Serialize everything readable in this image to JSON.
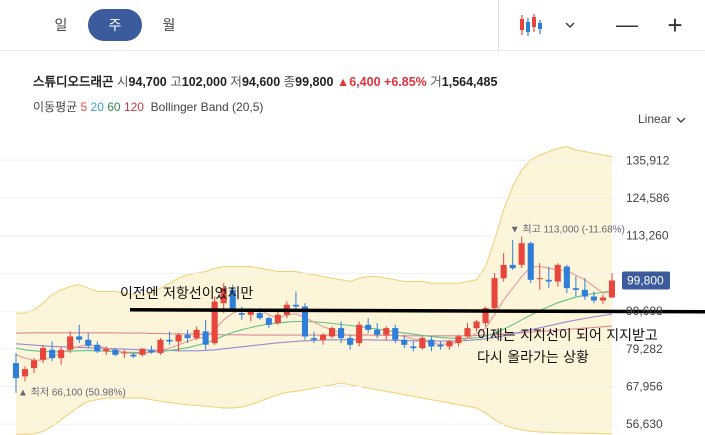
{
  "tabs": [
    {
      "label": "일",
      "active": false
    },
    {
      "label": "주",
      "active": true
    },
    {
      "label": "월",
      "active": false
    }
  ],
  "toolbar": {
    "chart_type_icon": "candlestick-icon",
    "dropdown_icon": "chevron-down-icon",
    "zoom_out": "—",
    "zoom_in": "+"
  },
  "quote": {
    "name": "스튜디오드래곤",
    "open_label": "시",
    "open": "94,700",
    "high_label": "고",
    "high": "102,000",
    "low_label": "저",
    "low": "94,600",
    "close_label": "종",
    "close": "99,800",
    "change": "▲6,400",
    "change_pct": "+6.85%",
    "volume_label": "거",
    "volume": "1,564,485"
  },
  "indicators": {
    "ma_label": "이동평균",
    "ma": [
      {
        "period": "5",
        "color": "#e24a4a"
      },
      {
        "period": "20",
        "color": "#3aa6c8"
      },
      {
        "period": "60",
        "color": "#3a8a52"
      },
      {
        "period": "120",
        "color": "#c0394a"
      }
    ],
    "bollinger": "Bollinger Band (20,5)"
  },
  "scale_label": "Linear",
  "colors": {
    "up": "#e8453c",
    "down": "#2f7fd9",
    "band": "#fdf5d9",
    "band_line": "#f0d070",
    "price_tag": "#3b5b9d"
  },
  "chart_data": {
    "type": "candlestick",
    "y_ticks": [
      135912,
      124586,
      113260,
      101934,
      90608,
      79282,
      67956,
      56630
    ],
    "y_tick_labels": [
      "135,912",
      "124,586",
      "113,260",
      "",
      "90,608",
      "79,282",
      "67,956",
      "56,630"
    ],
    "ylim": [
      53400,
      143500
    ],
    "current_price_label": "99,800",
    "current_price": 99800,
    "high_marker": "▼ 최고 113,000 (-11.68%)",
    "high_price": 113000,
    "low_marker": "▲ 최저 66,100 (50.98%)",
    "low_price": 66100,
    "annotations": [
      {
        "text": "이전엔 저항선이었지만"
      },
      {
        "text": "이제는 지지선이 되어 지지받고"
      },
      {
        "text": "다시 올라가는 상황"
      }
    ],
    "trendline_price": 91000,
    "candles": [
      [
        75000,
        78000,
        66100,
        70500
      ],
      [
        71000,
        74000,
        69500,
        73200
      ],
      [
        73500,
        76500,
        72000,
        75800
      ],
      [
        76000,
        80500,
        75000,
        79500
      ],
      [
        79000,
        81500,
        75500,
        76500
      ],
      [
        76500,
        80000,
        74500,
        79000
      ],
      [
        79000,
        84500,
        78000,
        83000
      ],
      [
        83000,
        86500,
        81000,
        82000
      ],
      [
        82000,
        84000,
        79500,
        80200
      ],
      [
        80500,
        81500,
        78000,
        78500
      ],
      [
        78500,
        80000,
        77500,
        79200
      ],
      [
        79000,
        79500,
        77000,
        77500
      ],
      [
        78000,
        79000,
        76500,
        78200
      ],
      [
        77500,
        78000,
        76500,
        77000
      ],
      [
        77500,
        79500,
        77000,
        79300
      ],
      [
        78800,
        80200,
        77800,
        78200
      ],
      [
        78000,
        82500,
        77500,
        82000
      ],
      [
        82000,
        84500,
        80500,
        81500
      ],
      [
        81500,
        84000,
        78500,
        83500
      ],
      [
        83500,
        85000,
        81000,
        82500
      ],
      [
        82500,
        86000,
        82000,
        85000
      ],
      [
        84500,
        88000,
        79000,
        80500
      ],
      [
        81000,
        95000,
        80500,
        93500
      ],
      [
        93000,
        99000,
        90000,
        97500
      ],
      [
        97000,
        98500,
        90500,
        91000
      ],
      [
        90000,
        92000,
        88000,
        89500
      ],
      [
        89500,
        91500,
        87500,
        90500
      ],
      [
        90000,
        91500,
        88000,
        88500
      ],
      [
        88500,
        89000,
        85500,
        86500
      ],
      [
        87000,
        90500,
        86500,
        89500
      ],
      [
        89500,
        93500,
        88500,
        92500
      ],
      [
        92500,
        96500,
        90500,
        92000
      ],
      [
        92000,
        93000,
        82000,
        83000
      ],
      [
        82500,
        84500,
        81000,
        82000
      ],
      [
        82000,
        84000,
        80500,
        83500
      ],
      [
        83000,
        86000,
        82500,
        85500
      ],
      [
        85500,
        87500,
        81000,
        82500
      ],
      [
        82500,
        83500,
        79000,
        80500
      ],
      [
        81000,
        87500,
        80000,
        86500
      ],
      [
        86500,
        88500,
        84000,
        85000
      ],
      [
        85000,
        87000,
        82500,
        83500
      ],
      [
        83500,
        86000,
        82000,
        85500
      ],
      [
        85500,
        86500,
        81000,
        82000
      ],
      [
        82000,
        83500,
        79500,
        80500
      ],
      [
        80000,
        81500,
        78500,
        79500
      ],
      [
        79500,
        83000,
        79000,
        82500
      ],
      [
        82000,
        83000,
        78500,
        80000
      ],
      [
        80500,
        81500,
        79000,
        80000
      ],
      [
        80000,
        82000,
        79000,
        81500
      ],
      [
        81000,
        83500,
        80000,
        83000
      ],
      [
        83000,
        87000,
        82500,
        85500
      ],
      [
        85500,
        88000,
        84500,
        87500
      ],
      [
        87000,
        92000,
        86000,
        91500
      ],
      [
        91500,
        102000,
        91000,
        100500
      ],
      [
        100500,
        108000,
        99500,
        104500
      ],
      [
        104500,
        112000,
        103000,
        103500
      ],
      [
        104500,
        113000,
        103500,
        111000
      ],
      [
        111000,
        111500,
        99000,
        100000
      ],
      [
        100500,
        105000,
        97000,
        100500
      ],
      [
        100000,
        104000,
        97500,
        99500
      ],
      [
        99500,
        105000,
        98000,
        104500
      ],
      [
        104000,
        104500,
        96000,
        97500
      ],
      [
        97500,
        101000,
        95000,
        97000
      ],
      [
        97000,
        100500,
        94000,
        95000
      ],
      [
        95000,
        96500,
        93000,
        93800
      ],
      [
        93800,
        95500,
        92800,
        94700
      ],
      [
        94700,
        102000,
        94600,
        99800
      ]
    ],
    "bb_upper": [
      90000,
      90000,
      91000,
      93000,
      95500,
      97000,
      98000,
      98500,
      97500,
      96500,
      96500,
      96500,
      96000,
      95500,
      95500,
      96000,
      97500,
      99000,
      100500,
      101500,
      102000,
      102500,
      103500,
      104000,
      104000,
      104000,
      104000,
      103500,
      103000,
      102500,
      102500,
      102500,
      102000,
      101500,
      101000,
      100500,
      100000,
      99500,
      100500,
      101000,
      101000,
      100500,
      100000,
      99500,
      99500,
      99500,
      99000,
      99000,
      99000,
      99000,
      99500,
      100000,
      104000,
      112000,
      121000,
      128000,
      133000,
      136000,
      137500,
      138500,
      139500,
      140000,
      139000,
      138500,
      138000,
      137500,
      137000
    ],
    "bb_lower": [
      53600,
      53600,
      53700,
      54500,
      56000,
      58000,
      60000,
      62000,
      63500,
      64000,
      64500,
      64500,
      64500,
      64500,
      64500,
      64000,
      63500,
      63200,
      62800,
      62500,
      62300,
      62000,
      61800,
      61500,
      61500,
      61800,
      62500,
      63500,
      64500,
      65500,
      66200,
      66500,
      67000,
      67500,
      68000,
      68500,
      69000,
      68500,
      68000,
      67500,
      67000,
      66500,
      66000,
      65500,
      65000,
      64500,
      64000,
      63500,
      63000,
      62500,
      62000,
      61500,
      60000,
      58000,
      56500,
      55500,
      55000,
      54500,
      54300,
      54200,
      54100,
      54000,
      54000,
      53900,
      53900,
      53800,
      53800
    ],
    "ma5": [
      77500,
      76500,
      75800,
      76000,
      76800,
      78000,
      79200,
      80000,
      80500,
      80200,
      79500,
      78800,
      78200,
      77800,
      78000,
      78200,
      78800,
      79500,
      80500,
      81500,
      82400,
      82800,
      85000,
      88000,
      90000,
      91000,
      91200,
      91000,
      89500,
      88500,
      89500,
      89800,
      88600,
      87300,
      86000,
      85000,
      84000,
      83200,
      83500,
      83500,
      83200,
      83500,
      83400,
      83000,
      82200,
      81800,
      81000,
      80600,
      80800,
      81400,
      82400,
      83900,
      85500,
      89600,
      93900,
      97500,
      101000,
      103800,
      104000,
      103500,
      103000,
      102800,
      101400,
      100000,
      98000,
      96000,
      96500
    ],
    "ma20": [
      79500,
      79000,
      78700,
      78500,
      78400,
      78400,
      78600,
      78700,
      78800,
      78700,
      78600,
      78400,
      78300,
      78200,
      78200,
      78300,
      78500,
      78800,
      79200,
      79600,
      80300,
      81000,
      82000,
      83200,
      84200,
      85000,
      85700,
      86300,
      86700,
      87000,
      87300,
      87500,
      87500,
      87400,
      87200,
      86900,
      86600,
      86300,
      86000,
      85600,
      85200,
      84800,
      84400,
      84000,
      83700,
      83300,
      83000,
      82700,
      82500,
      82400,
      82400,
      82600,
      83100,
      84000,
      85200,
      86500,
      88000,
      89400,
      90800,
      92000,
      93100,
      94000,
      94800,
      95400,
      95900,
      96300,
      96600
    ],
    "ma60": [
      80800,
      80600,
      80400,
      80200,
      80000,
      79900,
      79800,
      79700,
      79600,
      79500,
      79400,
      79300,
      79200,
      79100,
      79000,
      78900,
      78800,
      78800,
      78700,
      78700,
      78700,
      78800,
      79000,
      79300,
      79600,
      79900,
      80200,
      80500,
      80800,
      81100,
      81300,
      81500,
      81700,
      81800,
      81900,
      82000,
      82000,
      82000,
      82000,
      82000,
      81900,
      81900,
      81800,
      81800,
      81700,
      81700,
      81600,
      81600,
      81600,
      81700,
      81800,
      82000,
      82300,
      82700,
      83200,
      83800,
      84400,
      85000,
      85600,
      86200,
      86800,
      87400,
      87900,
      88400,
      88900,
      89300,
      89700
    ],
    "ma120": [
      84000,
      84000,
      84100,
      84100,
      84100,
      84100,
      84100,
      84100,
      84100,
      84100,
      84100,
      84100,
      84000,
      84000,
      84000,
      83900,
      83900,
      83800,
      83800,
      83700,
      83700,
      83600,
      83600,
      83500,
      83500,
      83500,
      83400,
      83400,
      83400,
      83400,
      83400,
      83400,
      83400,
      83400,
      83400,
      83400,
      83400,
      83400,
      83400,
      83400,
      83300,
      83300,
      83300,
      83200,
      83200,
      83200,
      83200,
      83200,
      83200,
      83200,
      83200,
      83300,
      83400,
      83500,
      83700,
      83900,
      84100,
      84300,
      84500,
      84700,
      84900,
      85100,
      85300,
      85500,
      85700,
      85900,
      86100
    ]
  }
}
